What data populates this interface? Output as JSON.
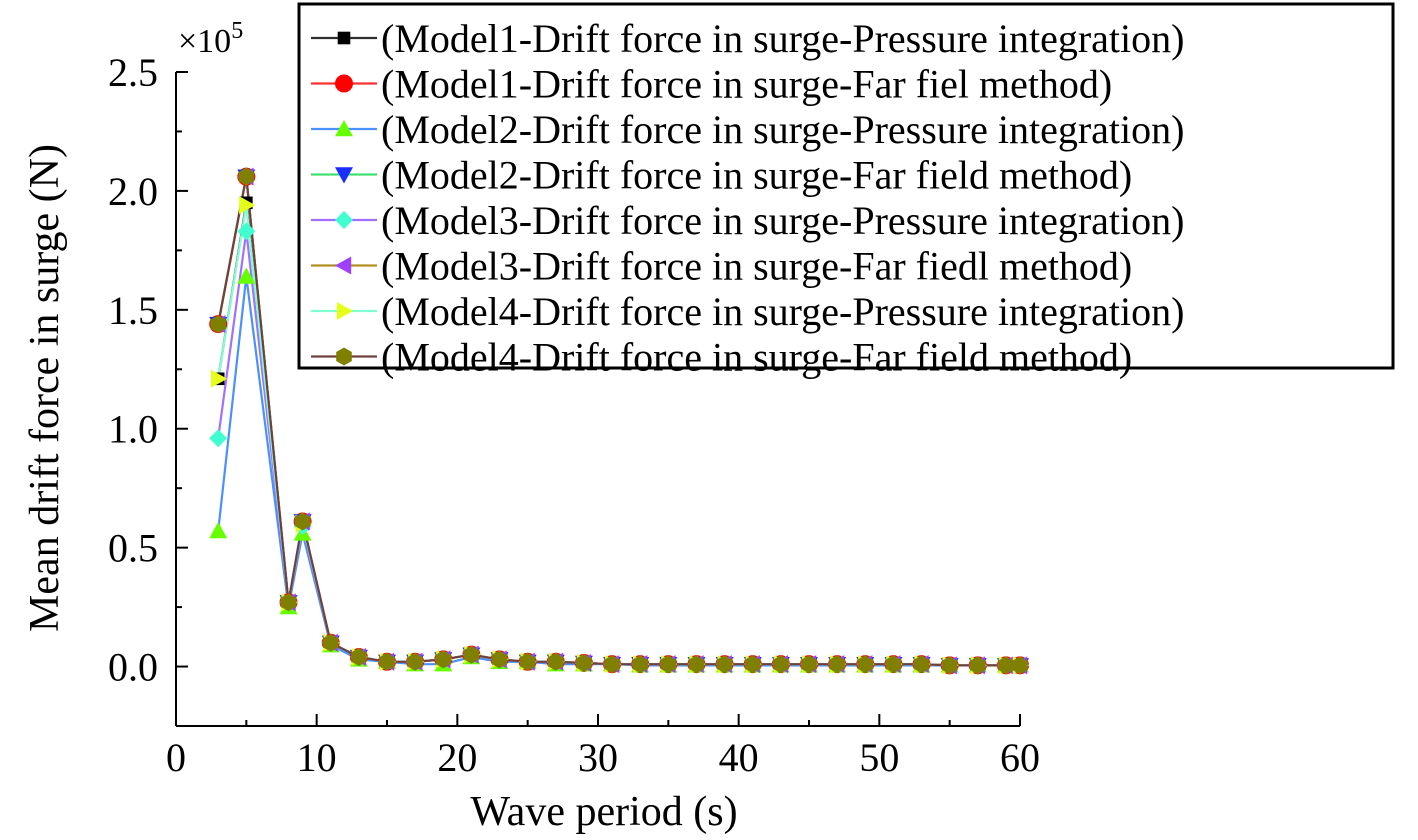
{
  "chart_data": {
    "type": "line",
    "xlabel": "Wave period (s)",
    "ylabel": "Mean drift force in surge (N)",
    "y_multiplier_label": "×10",
    "y_multiplier_exp": "5",
    "xlim": [
      0,
      60
    ],
    "ylim": [
      -0.25,
      2.5
    ],
    "x_ticks": [
      0,
      10,
      20,
      30,
      40,
      50,
      60
    ],
    "x_tick_labels": [
      "0",
      "10",
      "20",
      "30",
      "40",
      "50",
      "60"
    ],
    "y_ticks": [
      0.0,
      0.5,
      1.0,
      1.5,
      2.0,
      2.5
    ],
    "y_tick_labels": [
      "0.0",
      "0.5",
      "1.0",
      "1.5",
      "2.0",
      "2.5"
    ],
    "legend_position": "top-right",
    "x": [
      3,
      5,
      8,
      9,
      11,
      13,
      15,
      17,
      19,
      21,
      23,
      25,
      27,
      29,
      31,
      33,
      35,
      37,
      39,
      41,
      43,
      45,
      47,
      49,
      51,
      53,
      55,
      57,
      59,
      60
    ],
    "series": [
      {
        "name": "(Model1-Drift force in surge-Pressure integration)",
        "color": "#000000",
        "marker": "square",
        "values": [
          1.21,
          1.95,
          0.27,
          0.6,
          0.1,
          0.04,
          0.02,
          0.02,
          0.03,
          0.05,
          0.03,
          0.02,
          0.02,
          0.015,
          0.01,
          0.01,
          0.01,
          0.01,
          0.01,
          0.01,
          0.01,
          0.01,
          0.01,
          0.01,
          0.01,
          0.01,
          0.005,
          0.005,
          0.005,
          0.005
        ]
      },
      {
        "name": "(Model1-Drift force in surge-Far fiel method)",
        "color": "#ff0000",
        "marker": "circle",
        "values": [
          1.44,
          2.06,
          0.27,
          0.61,
          0.1,
          0.04,
          0.02,
          0.02,
          0.03,
          0.05,
          0.03,
          0.02,
          0.02,
          0.015,
          0.01,
          0.01,
          0.01,
          0.01,
          0.01,
          0.01,
          0.01,
          0.01,
          0.01,
          0.01,
          0.01,
          0.01,
          0.005,
          0.005,
          0.005,
          0.005
        ]
      },
      {
        "name": "(Model2-Drift force in surge-Pressure integration)",
        "color": "#66ff00",
        "marker": "triangle-up",
        "values": [
          0.57,
          1.64,
          0.25,
          0.56,
          0.09,
          0.03,
          0.02,
          0.01,
          0.01,
          0.04,
          0.02,
          0.02,
          0.01,
          0.01,
          0.01,
          0.005,
          0.005,
          0.005,
          0.005,
          0.005,
          0.005,
          0.005,
          0.005,
          0.005,
          0.005,
          0.005,
          0.005,
          0.005,
          0.005,
          0.005
        ]
      },
      {
        "name": "(Model2-Drift force in surge-Far field method)",
        "color": "#1a2cff",
        "marker": "triangle-down",
        "values": [
          1.44,
          2.06,
          0.27,
          0.61,
          0.1,
          0.04,
          0.02,
          0.02,
          0.03,
          0.05,
          0.03,
          0.02,
          0.02,
          0.015,
          0.01,
          0.01,
          0.01,
          0.01,
          0.01,
          0.01,
          0.01,
          0.01,
          0.01,
          0.01,
          0.01,
          0.01,
          0.005,
          0.005,
          0.005,
          0.005
        ]
      },
      {
        "name": "(Model3-Drift force in surge-Pressure integration)",
        "color": "#40ffd0",
        "marker": "diamond",
        "values": [
          0.96,
          1.83,
          0.27,
          0.59,
          0.1,
          0.04,
          0.02,
          0.02,
          0.03,
          0.05,
          0.03,
          0.02,
          0.02,
          0.015,
          0.01,
          0.01,
          0.01,
          0.01,
          0.01,
          0.01,
          0.01,
          0.01,
          0.01,
          0.01,
          0.01,
          0.01,
          0.005,
          0.005,
          0.005,
          0.005
        ]
      },
      {
        "name": "(Model3-Drift force in surge-Far fiedl method)",
        "color": "#a040ff",
        "marker": "triangle-left",
        "values": [
          1.44,
          2.06,
          0.27,
          0.61,
          0.1,
          0.04,
          0.02,
          0.02,
          0.03,
          0.05,
          0.03,
          0.02,
          0.02,
          0.015,
          0.01,
          0.01,
          0.01,
          0.01,
          0.01,
          0.01,
          0.01,
          0.01,
          0.01,
          0.01,
          0.01,
          0.01,
          0.005,
          0.005,
          0.005,
          0.005
        ]
      },
      {
        "name": "(Model4-Drift force in surge-Pressure integration)",
        "color": "#e6ff1a",
        "marker": "triangle-right",
        "values": [
          1.21,
          1.94,
          0.27,
          0.6,
          0.1,
          0.04,
          0.02,
          0.02,
          0.03,
          0.05,
          0.03,
          0.02,
          0.02,
          0.015,
          0.01,
          0.01,
          0.01,
          0.01,
          0.01,
          0.01,
          0.01,
          0.01,
          0.01,
          0.01,
          0.01,
          0.01,
          0.005,
          0.005,
          0.005,
          0.005
        ]
      },
      {
        "name": "(Model4-Drift force in surge-Far field method)",
        "color": "#808000",
        "marker": "hexagon",
        "values": [
          1.44,
          2.06,
          0.27,
          0.61,
          0.1,
          0.04,
          0.02,
          0.02,
          0.03,
          0.05,
          0.03,
          0.02,
          0.02,
          0.015,
          0.01,
          0.01,
          0.01,
          0.01,
          0.01,
          0.01,
          0.01,
          0.01,
          0.01,
          0.01,
          0.01,
          0.01,
          0.005,
          0.005,
          0.005,
          0.005
        ]
      }
    ]
  },
  "line_colors": [
    "#303030",
    "#ff3030",
    "#4a90ff",
    "#40e070",
    "#a070ff",
    "#b09020",
    "#80ffd0",
    "#704040"
  ]
}
